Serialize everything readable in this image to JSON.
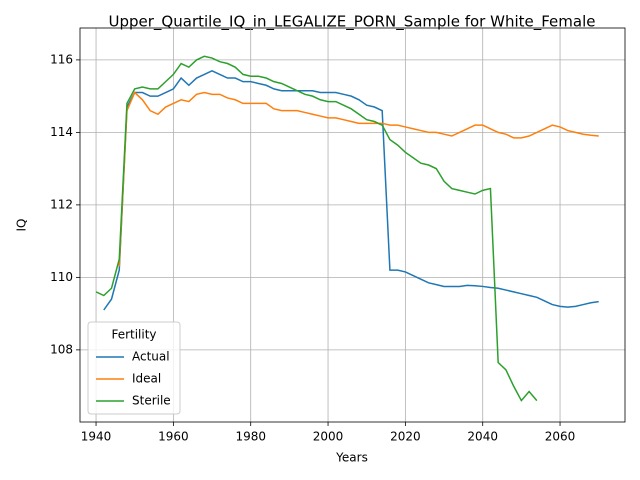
{
  "chart_data": {
    "type": "line",
    "title": "Upper_Quartile_IQ_in_LEGALIZE_PORN_Sample for White_Female",
    "x_label": "Years",
    "y_label": "IQ",
    "x": [
      1940,
      1942,
      1944,
      1946,
      1948,
      1950,
      1952,
      1954,
      1956,
      1958,
      1960,
      1962,
      1964,
      1966,
      1968,
      1970,
      1972,
      1974,
      1976,
      1978,
      1980,
      1982,
      1984,
      1986,
      1988,
      1990,
      1992,
      1994,
      1996,
      1998,
      2000,
      2002,
      2004,
      2006,
      2008,
      2010,
      2012,
      2014,
      2016,
      2018,
      2020,
      2022,
      2024,
      2026,
      2028,
      2030,
      2032,
      2034,
      2036,
      2038,
      2040,
      2042,
      2044,
      2046,
      2048,
      2050,
      2052,
      2054,
      2056,
      2058,
      2060,
      2062,
      2064,
      2066,
      2068,
      2070
    ],
    "series": [
      {
        "name": "Actual",
        "color": "#1f77b4",
        "values": [
          null,
          109.1,
          109.4,
          110.2,
          114.7,
          115.1,
          115.1,
          115.0,
          115.0,
          115.1,
          115.2,
          115.5,
          115.3,
          115.5,
          115.6,
          115.7,
          115.6,
          115.5,
          115.5,
          115.4,
          115.4,
          115.35,
          115.3,
          115.2,
          115.15,
          115.15,
          115.15,
          115.15,
          115.15,
          115.1,
          115.1,
          115.1,
          115.05,
          115.0,
          114.9,
          114.75,
          114.7,
          114.6,
          110.2,
          110.2,
          110.15,
          110.05,
          109.95,
          109.85,
          109.8,
          109.75,
          109.75,
          109.75,
          109.78,
          109.77,
          109.75,
          109.72,
          109.7,
          109.65,
          109.6,
          109.55,
          109.5,
          109.45,
          109.35,
          109.25,
          109.2,
          109.18,
          109.2,
          109.25,
          109.3,
          109.33
        ]
      },
      {
        "name": "Ideal",
        "color": "#ff7f0e",
        "values": [
          null,
          null,
          null,
          110.3,
          114.6,
          115.1,
          114.9,
          114.6,
          114.5,
          114.7,
          114.8,
          114.9,
          114.85,
          115.05,
          115.1,
          115.05,
          115.05,
          114.95,
          114.9,
          114.8,
          114.8,
          114.8,
          114.8,
          114.65,
          114.6,
          114.6,
          114.6,
          114.55,
          114.5,
          114.45,
          114.4,
          114.4,
          114.35,
          114.3,
          114.25,
          114.25,
          114.25,
          114.25,
          114.2,
          114.2,
          114.15,
          114.1,
          114.05,
          114.0,
          114.0,
          113.95,
          113.9,
          114.0,
          114.1,
          114.2,
          114.2,
          114.1,
          114.0,
          113.95,
          113.85,
          113.85,
          113.9,
          114.0,
          114.1,
          114.2,
          114.15,
          114.05,
          114.0,
          113.95,
          113.92,
          113.9
        ]
      },
      {
        "name": "Sterile",
        "color": "#2ca02c",
        "values": [
          109.6,
          109.5,
          109.7,
          110.5,
          114.8,
          115.2,
          115.25,
          115.2,
          115.2,
          115.4,
          115.6,
          115.9,
          115.8,
          116.0,
          116.1,
          116.05,
          115.95,
          115.9,
          115.8,
          115.6,
          115.55,
          115.55,
          115.5,
          115.4,
          115.35,
          115.25,
          115.15,
          115.05,
          115.0,
          114.9,
          114.85,
          114.85,
          114.75,
          114.65,
          114.5,
          114.35,
          114.3,
          114.2,
          113.8,
          113.65,
          113.45,
          113.3,
          113.15,
          113.1,
          113.0,
          112.65,
          112.45,
          112.4,
          112.35,
          112.3,
          112.4,
          112.45,
          107.65,
          107.45,
          107.0,
          106.6,
          106.85,
          106.6,
          null,
          null,
          null,
          null,
          null,
          null,
          null,
          null
        ]
      }
    ],
    "xlim": [
      1935.85,
      2076.8
    ],
    "ylim": [
      106.01,
      116.88
    ],
    "xticks": [
      1940,
      1960,
      1980,
      2000,
      2020,
      2040,
      2060
    ],
    "yticks": [
      108,
      110,
      112,
      114,
      116
    ],
    "grid": true,
    "legend_title": "Fertility",
    "legend_position": "lower left"
  }
}
